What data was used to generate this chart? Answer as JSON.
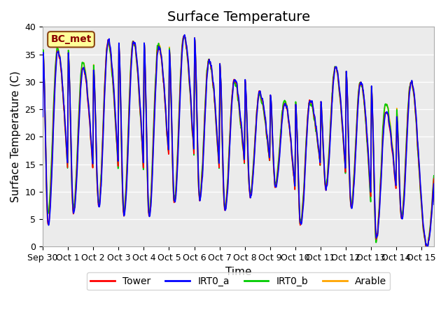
{
  "title": "Surface Temperature",
  "xlabel": "Time",
  "ylabel": "Surface Temperature (C)",
  "ylim": [
    0,
    40
  ],
  "xlim_days": 15.5,
  "annotation": "BC_met",
  "series_colors": {
    "Tower": "#FF0000",
    "IRT0_a": "#0000FF",
    "IRT0_b": "#00CC00",
    "Arable": "#FFA500"
  },
  "tick_labels": [
    "Sep 30",
    "Oct 1",
    "Oct 2",
    "Oct 3",
    "Oct 4",
    "Oct 5",
    "Oct 6",
    "Oct 7",
    "Oct 8",
    "Oct 9",
    "Oct 10",
    "Oct 11",
    "Oct 12",
    "Oct 13",
    "Oct 14",
    "Oct 15"
  ],
  "background_color": "#EBEBEB",
  "title_fontsize": 14,
  "axis_fontsize": 11,
  "legend_fontsize": 10,
  "daily_peaks": [
    35.5,
    32.5,
    37.5,
    37.5,
    36.5,
    38.5,
    34.0,
    30.5,
    28.0,
    26.0,
    26.5,
    32.5,
    30.0,
    24.5,
    30.0,
    0
  ],
  "daily_mins": [
    4.0,
    6.0,
    7.0,
    5.5,
    5.5,
    8.0,
    8.5,
    6.5,
    9.0,
    10.5,
    4.0,
    10.5,
    7.0,
    1.5,
    5.0,
    0
  ],
  "arable_peaks": [
    36.0,
    33.5,
    37.0,
    37.5,
    37.0,
    38.5,
    34.0,
    30.0,
    27.5,
    26.5,
    26.0,
    32.5,
    30.0,
    26.0,
    30.0,
    0
  ],
  "arable_mins": [
    6.0,
    6.5,
    7.5,
    6.0,
    6.0,
    8.5,
    9.0,
    7.0,
    9.5,
    11.0,
    4.5,
    11.0,
    7.5,
    1.0,
    5.5,
    0
  ]
}
